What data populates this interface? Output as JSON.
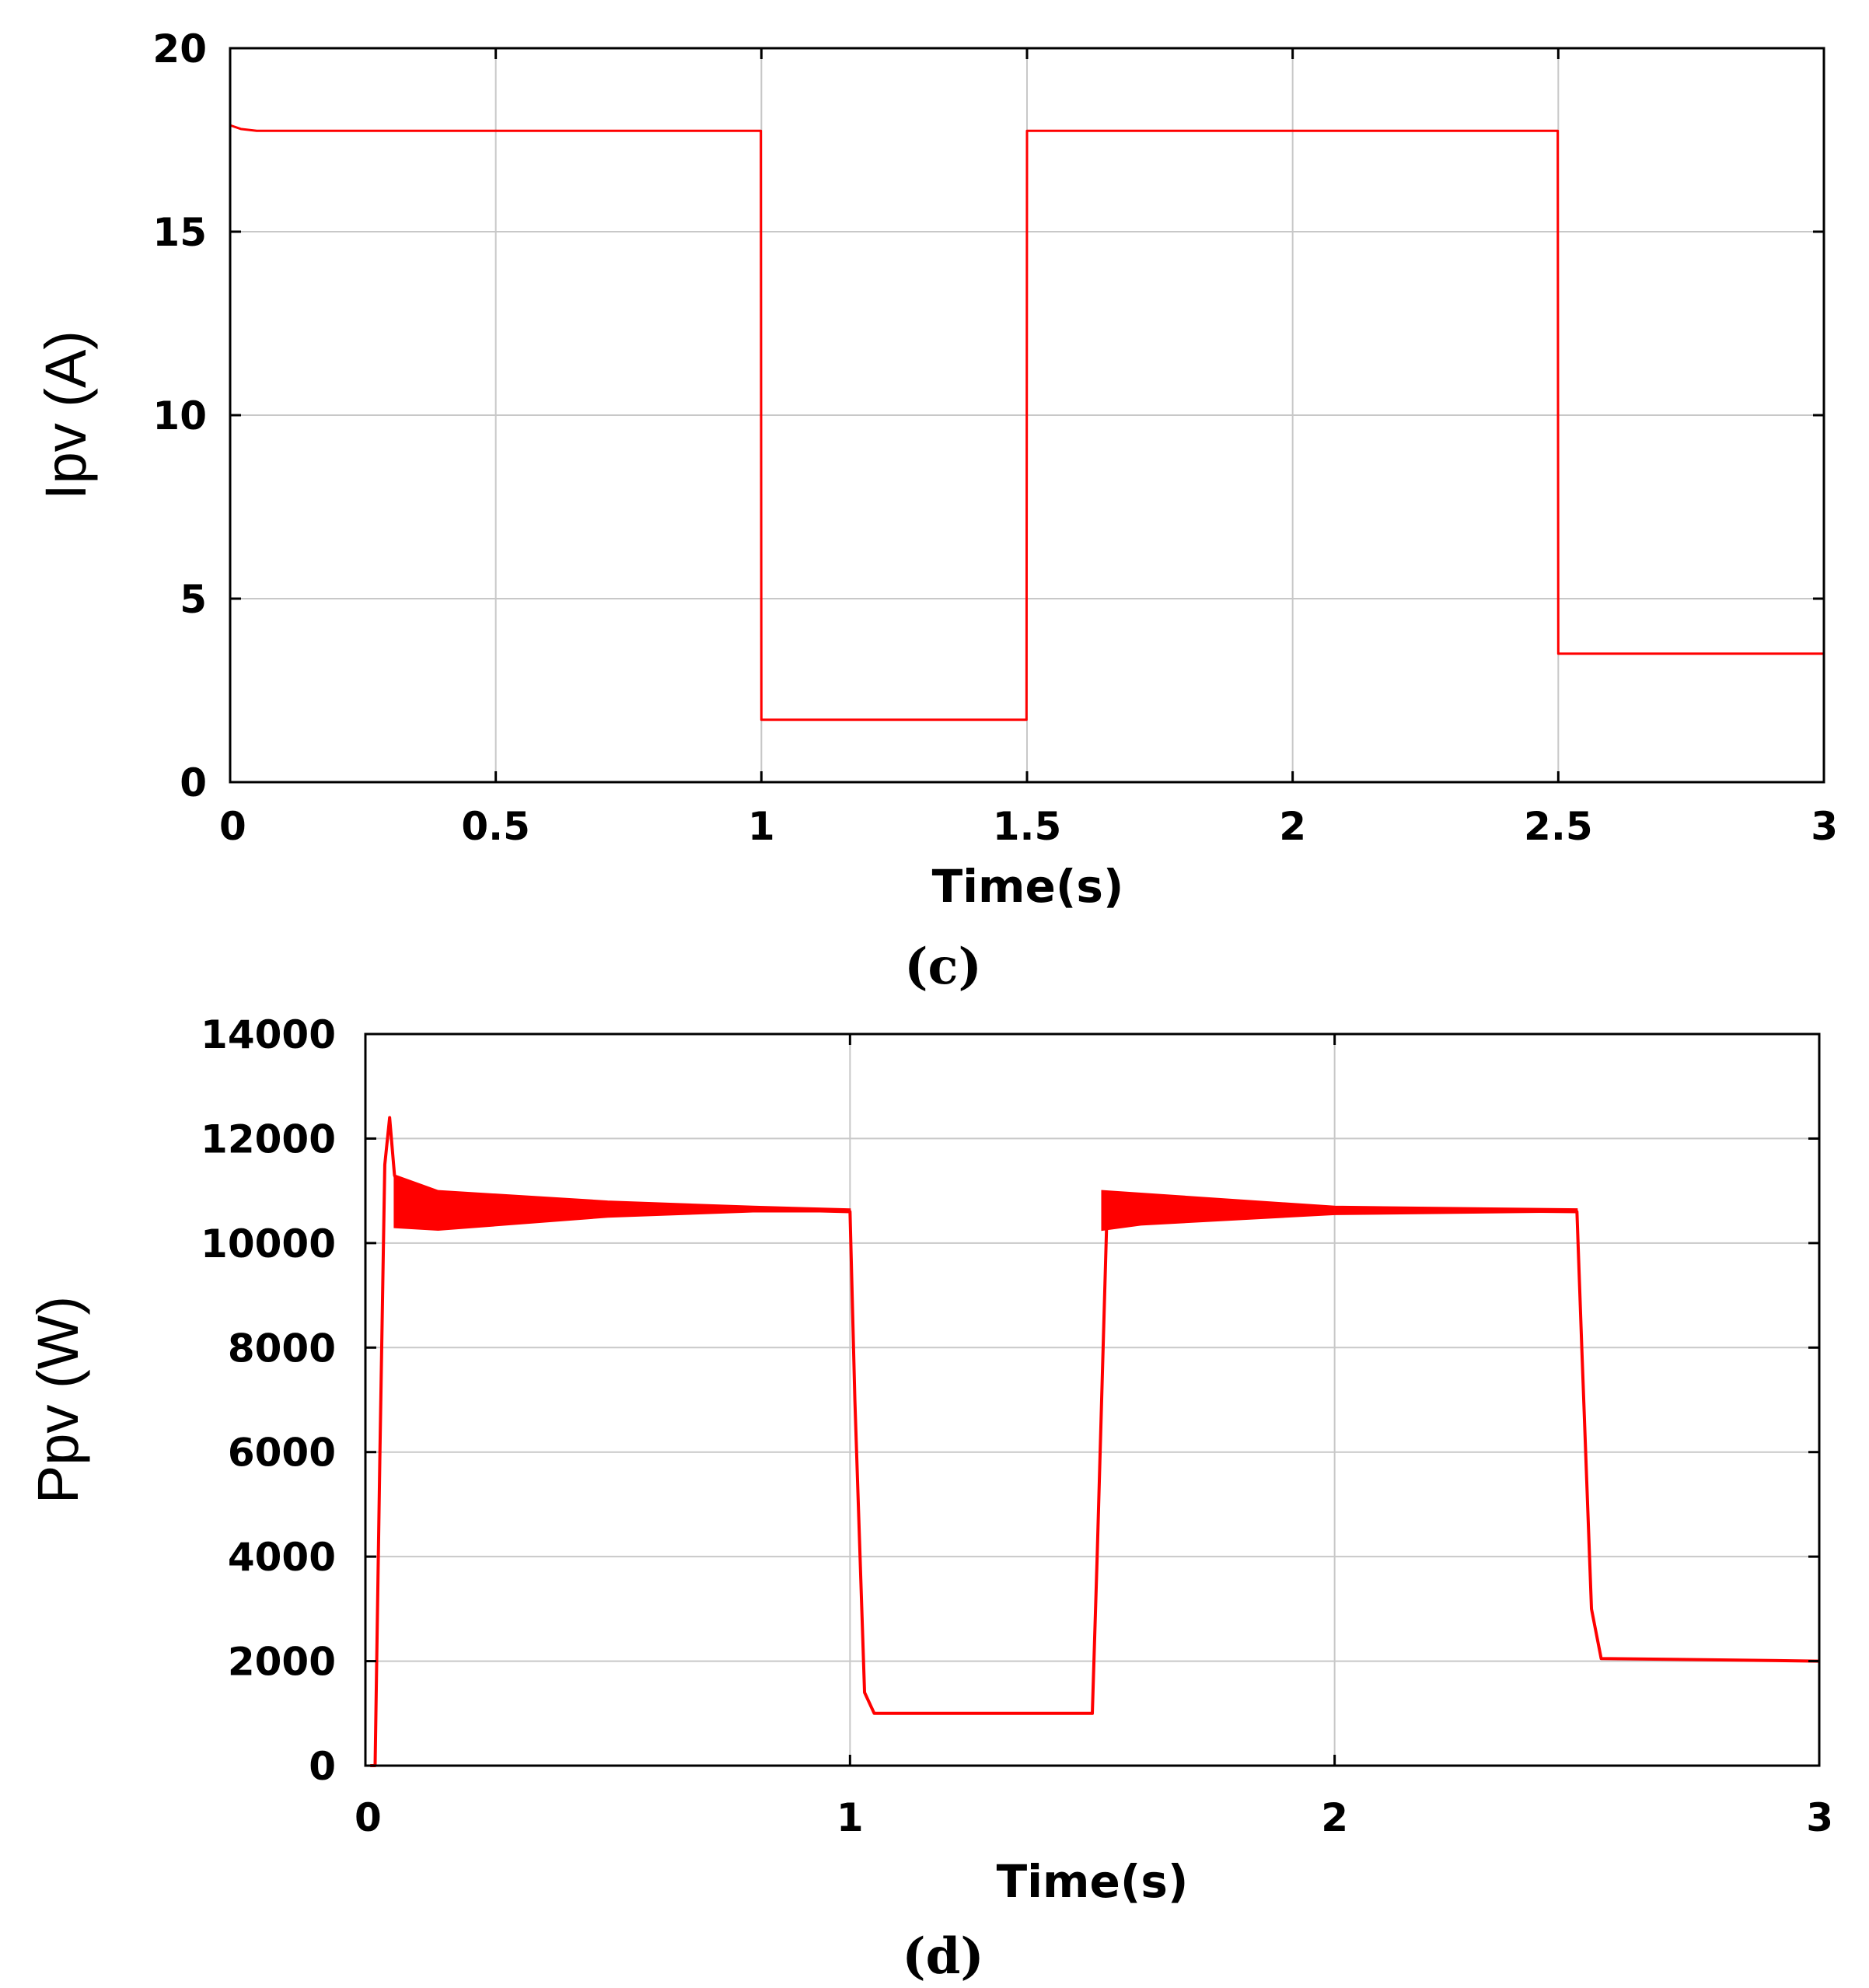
{
  "chart_data": [
    {
      "type": "line",
      "caption": "(c)",
      "xlabel": "Time(s)",
      "ylabel": "Ipv (A)",
      "xlim": [
        0,
        3
      ],
      "ylim": [
        0,
        20
      ],
      "xticks": [
        0,
        0.5,
        1,
        1.5,
        2,
        2.5,
        3
      ],
      "yticks": [
        0,
        5,
        10,
        15,
        20
      ],
      "xtick_labels": [
        "0",
        "0.5",
        "1",
        "1.5",
        "2",
        "2.5",
        "3"
      ],
      "ytick_labels": [
        "0",
        "5",
        "10",
        "15",
        "20"
      ],
      "grid": true,
      "series": [
        {
          "color": "#ff0000",
          "x": [
            0,
            0.02,
            0.05,
            0.5,
            0.999,
            1.0,
            1.499,
            1.5,
            1.55,
            2.0,
            2.499,
            2.5,
            3.0
          ],
          "y": [
            17.9,
            17.8,
            17.75,
            17.75,
            17.75,
            1.7,
            1.7,
            17.75,
            17.75,
            17.75,
            17.75,
            3.5,
            3.5
          ]
        }
      ]
    },
    {
      "type": "line",
      "caption": "(d)",
      "xlabel": "Time(s)",
      "ylabel": "Ppv (W)",
      "xlim": [
        0,
        3
      ],
      "ylim": [
        0,
        14000
      ],
      "xticks": [
        0,
        1,
        2,
        3
      ],
      "yticks": [
        0,
        2000,
        4000,
        6000,
        8000,
        10000,
        12000,
        14000
      ],
      "xtick_labels": [
        "0",
        "1",
        "2",
        "3"
      ],
      "ytick_labels": [
        "0",
        "2000",
        "4000",
        "6000",
        "8000",
        "10000",
        "12000",
        "14000"
      ],
      "grid": true,
      "series": [
        {
          "color": "#ff0000",
          "x": [
            0.01,
            0.02,
            0.03,
            0.04,
            0.05,
            0.06,
            0.08,
            0.1,
            0.13,
            0.2,
            0.5,
            0.8,
            1.0,
            1.01,
            1.03,
            1.05,
            1.2,
            1.5,
            1.51,
            1.53,
            1.55,
            2.0,
            2.5,
            2.51,
            2.53,
            2.55,
            3.0
          ],
          "y": [
            0,
            0,
            6000,
            11500,
            12400,
            11300,
            10800,
            11000,
            10700,
            10700,
            10700,
            10650,
            10600,
            7000,
            1400,
            1000,
            1000,
            1000,
            4000,
            10500,
            10700,
            10650,
            10600,
            8000,
            3000,
            2050,
            2000
          ]
        }
      ],
      "oscillation_bands": [
        {
          "x": [
            0.06,
            0.15,
            0.5,
            0.8,
            1.0
          ],
          "upper": [
            11300,
            11000,
            10800,
            10700,
            10650
          ],
          "lower": [
            10300,
            10250,
            10500,
            10600,
            10600
          ]
        },
        {
          "x": [
            1.52,
            1.6,
            2.0,
            2.5
          ],
          "upper": [
            11000,
            10950,
            10700,
            10650
          ],
          "lower": [
            10250,
            10350,
            10550,
            10600
          ]
        }
      ]
    }
  ]
}
